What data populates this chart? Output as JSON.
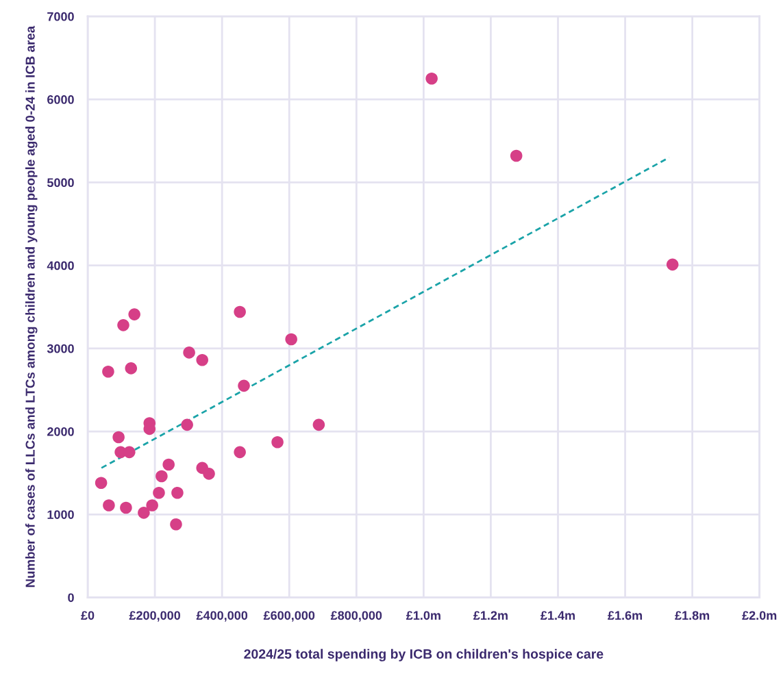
{
  "chart_data": {
    "type": "scatter",
    "xlabel": "2024/25 total spending by ICB on children's hospice care",
    "ylabel": "Number of cases of LLCs and LTCs among children and young people aged 0-24 in ICB area",
    "series": [
      {
        "color": "#d63f87",
        "marker": "circle",
        "x": [
          40000,
          61000,
          63000,
          92000,
          98000,
          106000,
          114000,
          124000,
          129000,
          139000,
          167000,
          184000,
          184000,
          192000,
          212000,
          220000,
          241000,
          263000,
          267000,
          296000,
          302000,
          341000,
          341000,
          361000,
          453000,
          453000,
          465000,
          565000,
          606000,
          688000,
          1024000,
          1276000,
          1741000
        ],
        "values": [
          1380,
          2720,
          1110,
          1930,
          1750,
          3280,
          1080,
          1750,
          2760,
          3410,
          1020,
          2100,
          2030,
          1110,
          1260,
          1460,
          1600,
          880,
          1260,
          2080,
          2950,
          2860,
          1560,
          1490,
          3440,
          1750,
          2550,
          1870,
          3110,
          2080,
          6250,
          5320,
          4010
        ]
      },
      {
        "type": "line",
        "color": "#1aa3a8",
        "line_style": "dashed",
        "x": [
          41000,
          1731000
        ],
        "values": [
          1560,
          5300
        ]
      }
    ],
    "xlim": [
      0,
      2000000
    ],
    "xticks": [
      {
        "value": 0,
        "label": "£0"
      },
      {
        "value": 200000,
        "label": "£200,000"
      },
      {
        "value": 400000,
        "label": "£400,000"
      },
      {
        "value": 600000,
        "label": "£600,000"
      },
      {
        "value": 800000,
        "label": "£800,000"
      },
      {
        "value": 1000000,
        "label": "£1.0m"
      },
      {
        "value": 1200000,
        "label": "£1.2m"
      },
      {
        "value": 1400000,
        "label": "£1.4m"
      },
      {
        "value": 1600000,
        "label": "£1.6m"
      },
      {
        "value": 1800000,
        "label": "£1.8m"
      },
      {
        "value": 2000000,
        "label": "£2.0m"
      }
    ],
    "ylim": [
      0,
      7000
    ],
    "yticks": [
      0,
      1000,
      2000,
      3000,
      4000,
      5000,
      6000,
      7000
    ],
    "grid": true,
    "legend": false
  }
}
